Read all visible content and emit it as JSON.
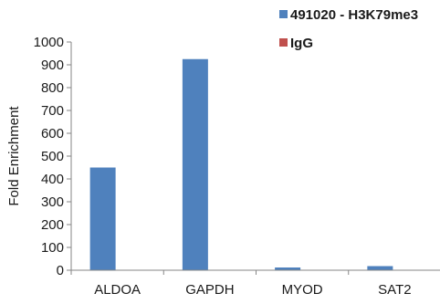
{
  "chart_data": {
    "type": "bar",
    "title": "",
    "xlabel": "",
    "ylabel": "Fold Enrichment",
    "ylim": [
      0,
      1000
    ],
    "yticks": [
      0,
      100,
      200,
      300,
      400,
      500,
      600,
      700,
      800,
      900,
      1000
    ],
    "grid": false,
    "legend_position": "top-right",
    "categories": [
      "ALDOA",
      "GAPDH",
      "MYOD",
      "SAT2"
    ],
    "series": [
      {
        "name": "491020 - H3K79me3",
        "color": "#4F81BD",
        "values": [
          450,
          925,
          12,
          18
        ]
      },
      {
        "name": "IgG",
        "color": "#C0504D",
        "values": [
          0,
          0,
          0,
          0
        ]
      }
    ]
  }
}
